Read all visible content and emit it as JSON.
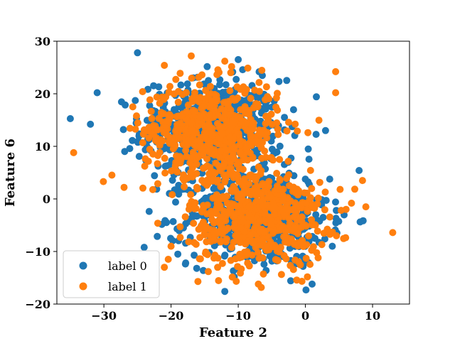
{
  "chart_data": {
    "type": "scatter",
    "xlabel": "Feature 2",
    "ylabel": "Feature 6",
    "xlim": [
      -37,
      15.5
    ],
    "ylim": [
      -20,
      30
    ],
    "xticks": [
      "−30",
      "−20",
      "−10",
      "0",
      "10"
    ],
    "xtick_values": [
      -30,
      -20,
      -10,
      0,
      10
    ],
    "yticks": [
      "−20",
      "−10",
      "0",
      "10",
      "20",
      "30"
    ],
    "ytick_values": [
      -20,
      -10,
      0,
      10,
      20,
      30
    ],
    "grid": false,
    "legend_position": "lower-left",
    "series": [
      {
        "name": "label 0",
        "color": "#1f77b4",
        "clusters": [
          {
            "cx": -14,
            "cy": 13,
            "sx": 5.2,
            "sy": 4.8,
            "n": 560
          },
          {
            "cx": -7,
            "cy": -3.5,
            "sx": 5.2,
            "sy": 4.6,
            "n": 560
          }
        ],
        "points": [
          [
            -25,
            27.8
          ],
          [
            -31,
            20.2
          ],
          [
            -10,
            26.5
          ],
          [
            -32,
            14.2
          ],
          [
            -12,
            -17.6
          ],
          [
            1,
            -16.2
          ],
          [
            8,
            5.4
          ],
          [
            -24,
            -9.2
          ],
          [
            -19,
            -10.5
          ],
          [
            -23,
            14.5
          ],
          [
            4,
            -9
          ],
          [
            3,
            13
          ]
        ]
      },
      {
        "name": "label 1",
        "color": "#ff7f0e",
        "clusters": [
          {
            "cx": -14,
            "cy": 13,
            "sx": 5.0,
            "sy": 4.6,
            "n": 560
          },
          {
            "cx": -7,
            "cy": -3.5,
            "sx": 5.0,
            "sy": 4.6,
            "n": 560
          }
        ],
        "points": [
          [
            -34.5,
            8.8
          ],
          [
            -17,
            27.2
          ],
          [
            4.5,
            24.2
          ],
          [
            4.5,
            20.2
          ],
          [
            13,
            -6.4
          ],
          [
            9,
            -1.5
          ],
          [
            8.5,
            3.5
          ],
          [
            -21,
            -13
          ],
          [
            -7,
            -16.2
          ],
          [
            -16,
            -15.7
          ],
          [
            -27,
            2.2
          ],
          [
            -21,
            25.4
          ],
          [
            -12,
            26.2
          ],
          [
            -20,
            -9
          ],
          [
            -1,
            -12
          ]
        ]
      }
    ]
  }
}
